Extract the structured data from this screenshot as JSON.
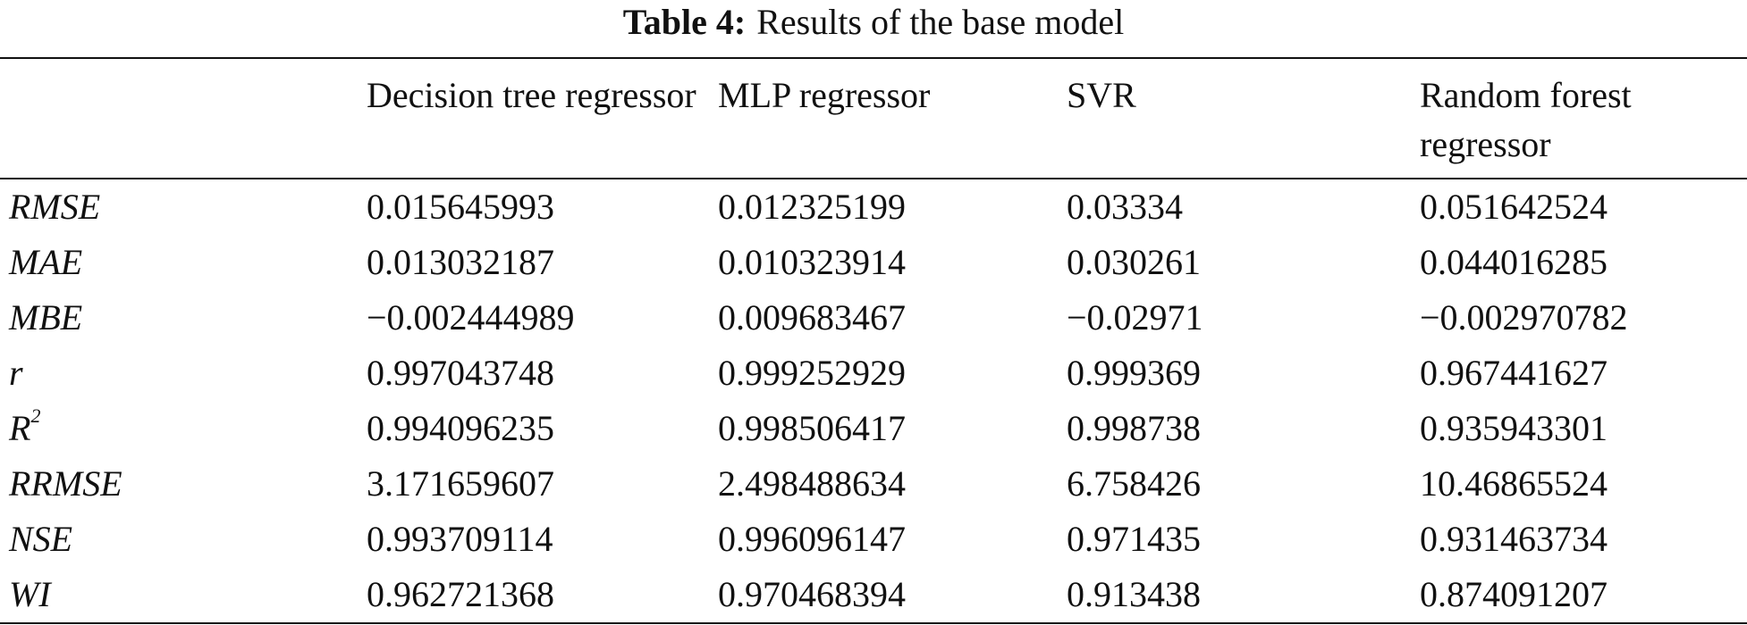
{
  "caption": {
    "label": "Table 4:",
    "text": "Results of the base model"
  },
  "columns": [
    "",
    "Decision tree regressor",
    "MLP regressor",
    "SVR",
    "Random forest regressor"
  ],
  "rows": [
    {
      "metric": "RMSE",
      "values": [
        "0.015645993",
        "0.012325199",
        "0.03334",
        "0.051642524"
      ]
    },
    {
      "metric": "MAE",
      "values": [
        "0.013032187",
        "0.010323914",
        "0.030261",
        "0.044016285"
      ]
    },
    {
      "metric": "MBE",
      "values": [
        "−0.002444989",
        "0.009683467",
        "−0.02971",
        "−0.002970782"
      ]
    },
    {
      "metric": "r",
      "values": [
        "0.997043748",
        "0.999252929",
        "0.999369",
        "0.967441627"
      ]
    },
    {
      "metric": "R",
      "metric_sup": "2",
      "values": [
        "0.994096235",
        "0.998506417",
        "0.998738",
        "0.935943301"
      ]
    },
    {
      "metric": "RRMSE",
      "values": [
        "3.171659607",
        "2.498488634",
        "6.758426",
        "10.46865524"
      ]
    },
    {
      "metric": "NSE",
      "values": [
        "0.993709114",
        "0.996096147",
        "0.971435",
        "0.931463734"
      ]
    },
    {
      "metric": "WI",
      "values": [
        "0.962721368",
        "0.970468394",
        "0.913438",
        "0.874091207"
      ]
    }
  ]
}
